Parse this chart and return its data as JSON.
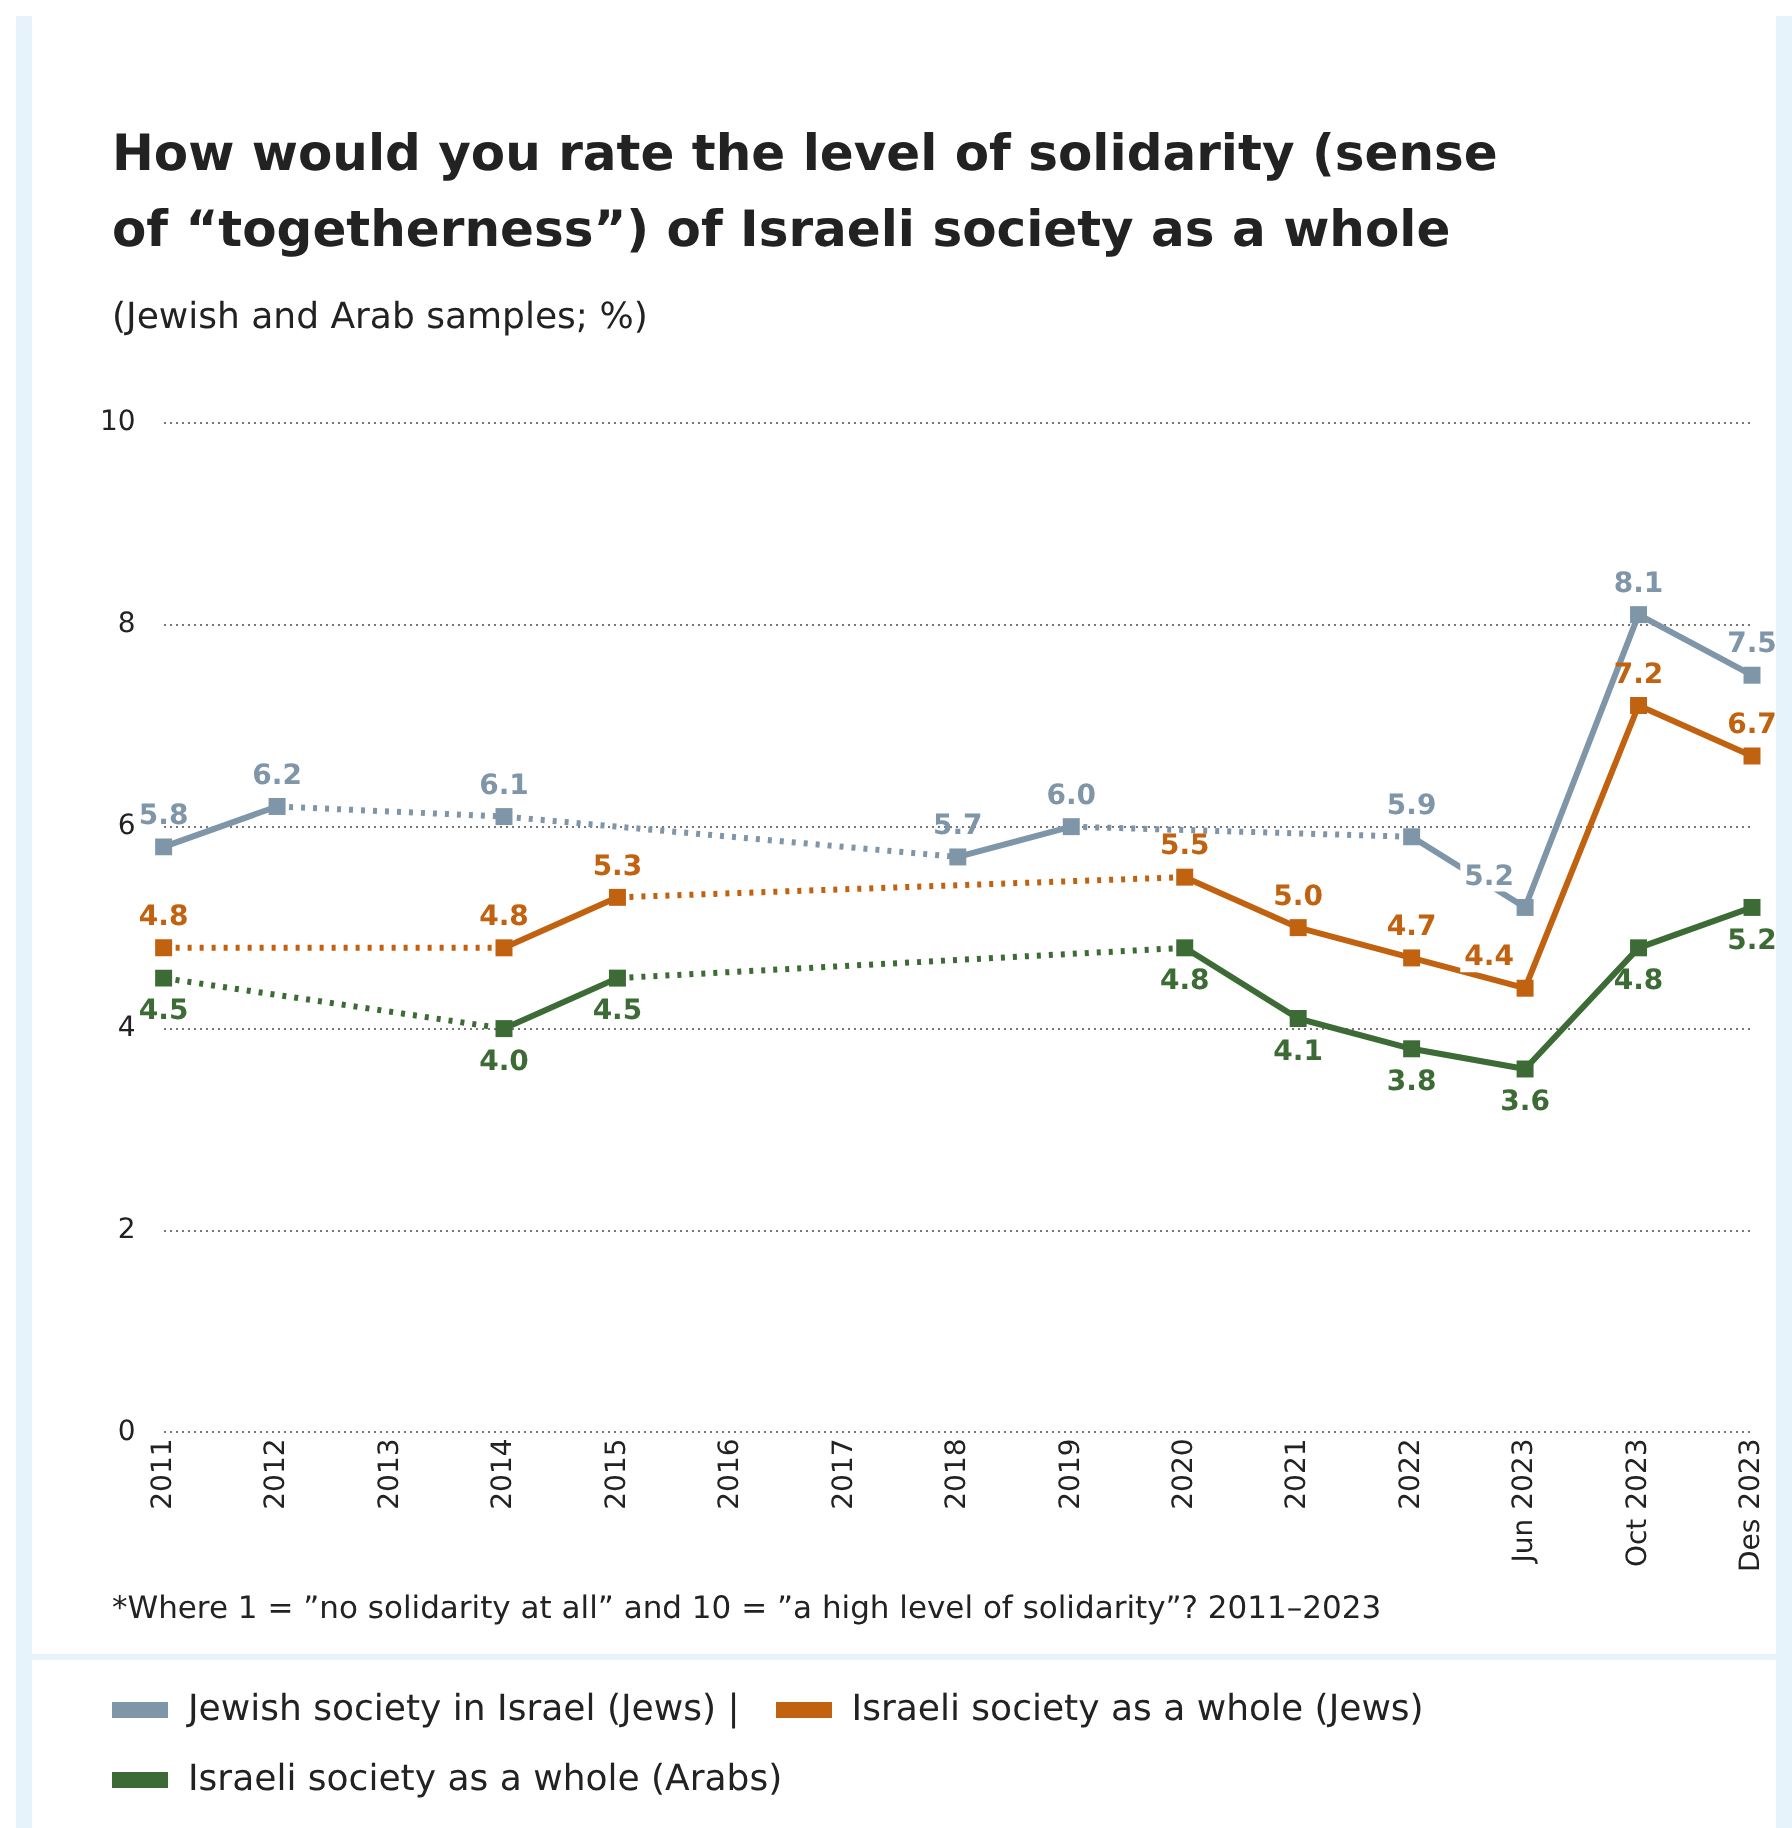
{
  "chart_data": {
    "type": "line",
    "title": "How would you rate the level of solidarity (sense of “togetherness”) of Israeli society as a whole",
    "subtitle": "(Jewish and Arab samples; %)",
    "categories": [
      "2011",
      "2012",
      "2013",
      "2014",
      "2015",
      "2016",
      "2017",
      "2018",
      "2019",
      "2020",
      "2021",
      "2022",
      "Jun 2023",
      "Oct 2023",
      "Des 2023"
    ],
    "series": [
      {
        "name": "Jewish society in Israel (Jews) |",
        "color": "#7f95a8",
        "values": [
          5.8,
          6.2,
          null,
          6.1,
          null,
          null,
          null,
          5.7,
          6.0,
          null,
          null,
          5.9,
          5.2,
          8.1,
          7.5
        ],
        "value_labels": [
          "5.8",
          "6.2",
          null,
          "6.1",
          null,
          null,
          null,
          "5.7",
          "6.0",
          null,
          null,
          "5.9",
          "5.2",
          "8.1",
          "7.5"
        ]
      },
      {
        "name": "Israeli society as a whole (Jews)",
        "color": "#c0620f",
        "values": [
          4.8,
          null,
          null,
          4.8,
          5.3,
          null,
          null,
          null,
          null,
          5.5,
          5.0,
          4.7,
          4.4,
          7.2,
          6.7
        ],
        "value_labels": [
          "4.8",
          null,
          null,
          "4.8",
          "5.3",
          null,
          null,
          null,
          null,
          "5.5",
          "5.0",
          "4.7",
          "4.4",
          "7.2",
          "6.7"
        ]
      },
      {
        "name": "Israeli society as a whole (Arabs)",
        "color": "#3d6b35",
        "values": [
          4.5,
          null,
          null,
          4.0,
          4.5,
          null,
          null,
          null,
          null,
          4.8,
          4.1,
          3.8,
          3.6,
          4.8,
          5.2
        ],
        "value_labels": [
          "4.5",
          null,
          null,
          "4.0",
          "4.5",
          null,
          null,
          null,
          null,
          "4.8",
          "4.1",
          "3.8",
          "3.6",
          "4.8",
          "5.2"
        ]
      }
    ],
    "ylim": [
      0,
      10
    ],
    "yticks": [
      0,
      2,
      4,
      6,
      8,
      10
    ],
    "grid": "y",
    "marker": "square",
    "legend": "bottom",
    "annotations": [
      "*Where 1 = ”no solidarity at all” and 10 = ”a high level of solidarity”? 2011–2023"
    ]
  }
}
